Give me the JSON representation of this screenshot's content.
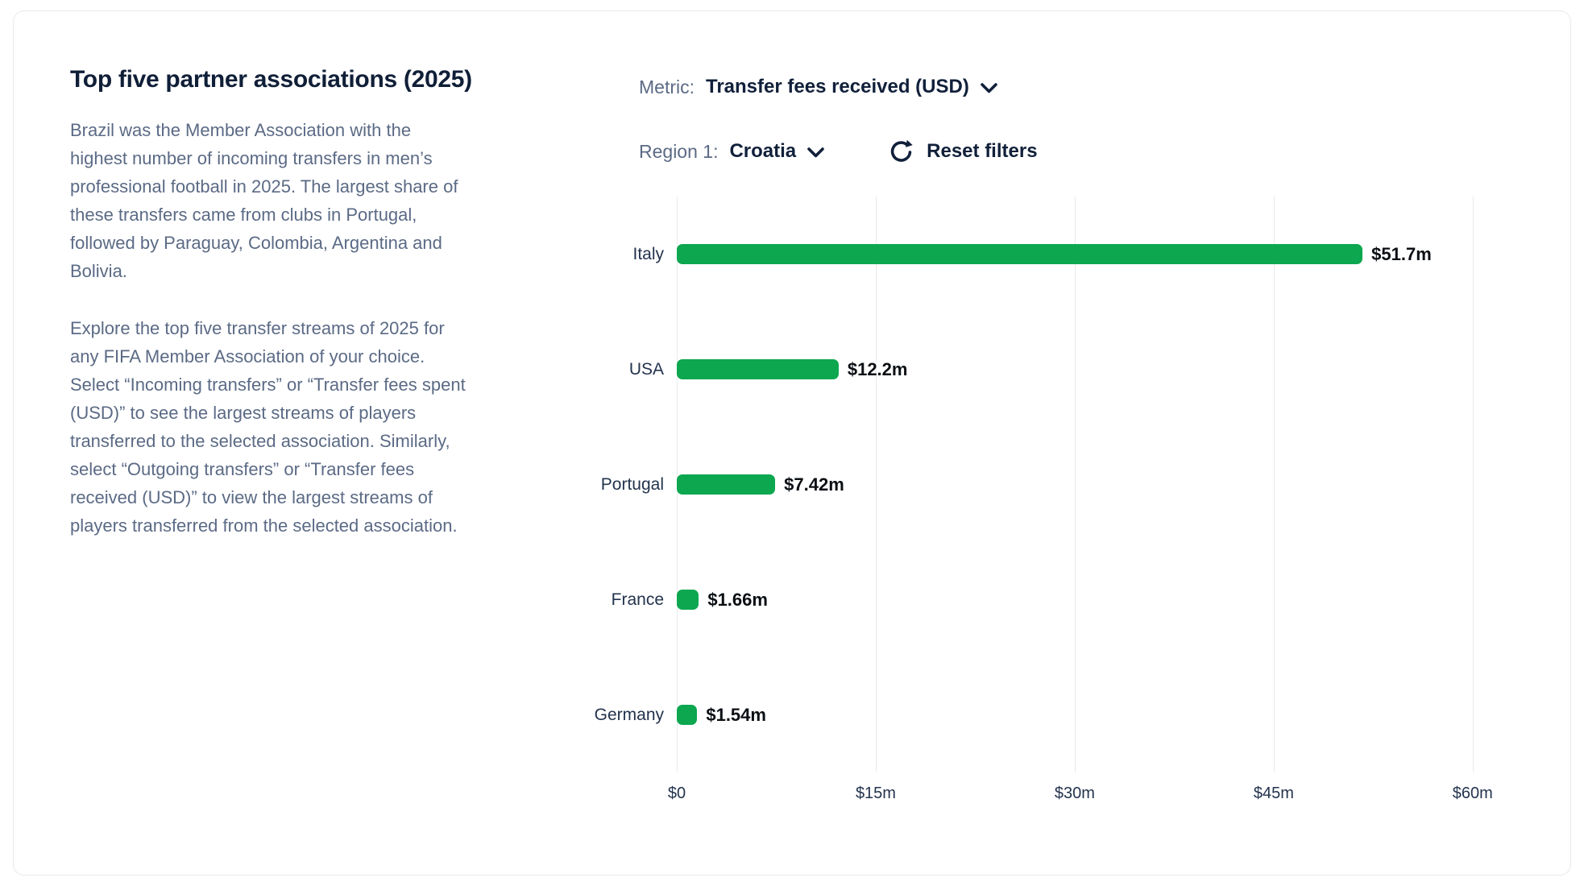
{
  "panel": {
    "title": "Top five partner associations (2025)",
    "paragraph1": "Brazil was the Member Association with the highest number of incoming transfers in men’s professional football in 2025. The largest share of these transfers came from clubs in Portugal, followed by Paraguay, Colombia, Argentina and Bolivia.",
    "paragraph2": "Explore the top five transfer streams of 2025 for any FIFA Member Association of your choice. Select “Incoming transfers” or “Transfer fees spent (USD)” to see the largest streams of players transferred to the selected association. Similarly, select “Outgoing transfers” or “Transfer fees received (USD)” to view the largest streams of players transferred from the selected association."
  },
  "controls": {
    "metric_label": "Metric:",
    "metric_value": "Transfer fees received (USD)",
    "region_label": "Region 1:",
    "region_value": "Croatia",
    "reset_label": "Reset filters"
  },
  "icons": {
    "metric_dropdown": "chevron-down-icon",
    "region_dropdown": "chevron-down-icon",
    "reset": "refresh-clockwise-icon"
  },
  "colors": {
    "bar_green": "#0ca74f",
    "navy": "#11203a",
    "body_text": "#5b6a85",
    "gridline": "#e8eaee",
    "value_text": "#0b0f14"
  },
  "chart_data": {
    "type": "bar",
    "orientation": "horizontal",
    "title": "",
    "xlabel": "",
    "ylabel": "",
    "categories": [
      "Italy",
      "USA",
      "Portugal",
      "France",
      "Germany"
    ],
    "values": [
      51.7,
      12.2,
      7.42,
      1.66,
      1.54
    ],
    "value_labels": [
      "$51.7m",
      "$12.2m",
      "$7.42m",
      "$1.66m",
      "$1.54m"
    ],
    "unit": "USD millions",
    "xlim": [
      0,
      67.3
    ],
    "ticks": [
      {
        "value": 0,
        "label": "$0"
      },
      {
        "value": 15,
        "label": "$15m"
      },
      {
        "value": 30,
        "label": "$30m"
      },
      {
        "value": 45,
        "label": "$45m"
      },
      {
        "value": 60,
        "label": "$60m"
      }
    ],
    "grid": true,
    "legend": "none",
    "bar_color": "#0ca74f"
  }
}
